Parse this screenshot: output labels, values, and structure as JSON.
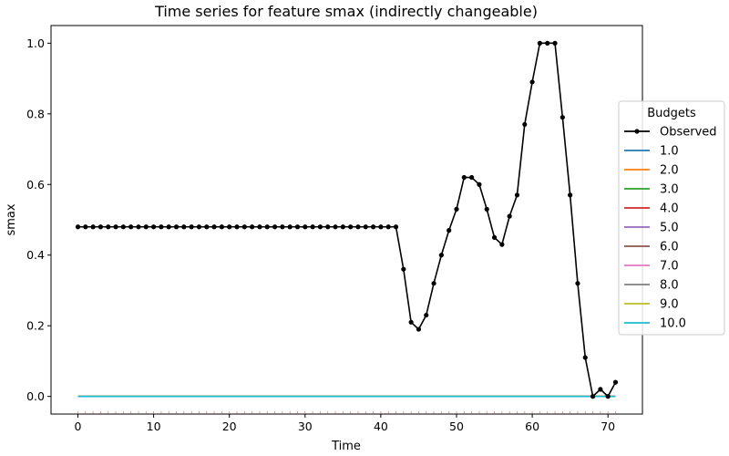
{
  "chart_data": {
    "type": "line",
    "title": "Time series for feature smax (indirectly changeable)",
    "xlabel": "Time",
    "ylabel": "smax",
    "xlim": [
      -3.55,
      74.55
    ],
    "ylim": [
      -0.05,
      1.05
    ],
    "xticks": [
      0,
      10,
      20,
      30,
      40,
      50,
      60,
      70
    ],
    "yticks": [
      0.0,
      0.2,
      0.4,
      0.6,
      0.8,
      1.0
    ],
    "grid": false,
    "legend": {
      "title": "Budgets",
      "placement": "right"
    },
    "series": [
      {
        "name": "Observed",
        "color": "#000000",
        "marker": "circle",
        "x": [
          0,
          1,
          2,
          3,
          4,
          5,
          6,
          7,
          8,
          9,
          10,
          11,
          12,
          13,
          14,
          15,
          16,
          17,
          18,
          19,
          20,
          21,
          22,
          23,
          24,
          25,
          26,
          27,
          28,
          29,
          30,
          31,
          32,
          33,
          34,
          35,
          36,
          37,
          38,
          39,
          40,
          41,
          42,
          43,
          44,
          45,
          46,
          47,
          48,
          49,
          50,
          51,
          52,
          53,
          54,
          55,
          56,
          57,
          58,
          59,
          60,
          61,
          62,
          63,
          64,
          65,
          66,
          67,
          68,
          69,
          70,
          71
        ],
        "y": [
          0.48,
          0.48,
          0.48,
          0.48,
          0.48,
          0.48,
          0.48,
          0.48,
          0.48,
          0.48,
          0.48,
          0.48,
          0.48,
          0.48,
          0.48,
          0.48,
          0.48,
          0.48,
          0.48,
          0.48,
          0.48,
          0.48,
          0.48,
          0.48,
          0.48,
          0.48,
          0.48,
          0.48,
          0.48,
          0.48,
          0.48,
          0.48,
          0.48,
          0.48,
          0.48,
          0.48,
          0.48,
          0.48,
          0.48,
          0.48,
          0.48,
          0.48,
          0.48,
          0.36,
          0.21,
          0.19,
          0.23,
          0.32,
          0.4,
          0.47,
          0.53,
          0.62,
          0.62,
          0.6,
          0.53,
          0.45,
          0.43,
          0.51,
          0.57,
          0.77,
          0.89,
          1.0,
          1.0,
          1.0,
          0.79,
          0.57,
          0.32,
          0.11,
          0.0,
          0.02,
          0.0,
          0.04
        ]
      },
      {
        "name": "1.0",
        "color": "#1f77b4",
        "x": [
          0,
          71
        ],
        "y": [
          0.0,
          0.0
        ]
      },
      {
        "name": "2.0",
        "color": "#ff7f0e",
        "x": [
          0,
          71
        ],
        "y": [
          0.0,
          0.0
        ]
      },
      {
        "name": "3.0",
        "color": "#2ca02c",
        "x": [
          0,
          71
        ],
        "y": [
          0.0,
          0.0
        ]
      },
      {
        "name": "4.0",
        "color": "#d62728",
        "x": [
          0,
          71
        ],
        "y": [
          0.0,
          0.0
        ]
      },
      {
        "name": "5.0",
        "color": "#9467bd",
        "x": [
          0,
          71
        ],
        "y": [
          0.0,
          0.0
        ]
      },
      {
        "name": "6.0",
        "color": "#8c564b",
        "x": [
          0,
          71
        ],
        "y": [
          0.0,
          0.0
        ]
      },
      {
        "name": "7.0",
        "color": "#e377c2",
        "x": [
          0,
          71
        ],
        "y": [
          0.0,
          0.0
        ]
      },
      {
        "name": "8.0",
        "color": "#7f7f7f",
        "x": [
          0,
          71
        ],
        "y": [
          0.0,
          0.0
        ]
      },
      {
        "name": "9.0",
        "color": "#bcbd22",
        "x": [
          0,
          71
        ],
        "y": [
          0.0,
          0.0
        ]
      },
      {
        "name": "10.0",
        "color": "#17becf",
        "x": [
          0,
          71
        ],
        "y": [
          0.0,
          0.0
        ]
      }
    ]
  }
}
